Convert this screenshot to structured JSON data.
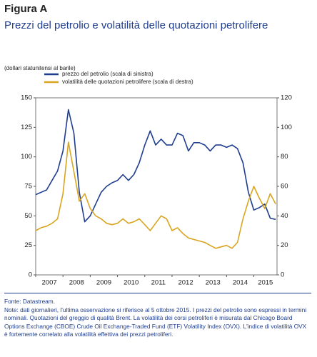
{
  "chart_data": {
    "type": "line",
    "title": "Figura A",
    "subtitle": "Prezzi del petrolio e volatilità delle quotazioni petrolifere",
    "y_label": "(dollari statunitensi al barile)",
    "categories": [
      "2007",
      "2008",
      "2009",
      "2010",
      "2011",
      "2012",
      "2013",
      "2014",
      "2015"
    ],
    "x": [
      2007.0,
      2007.2,
      2007.4,
      2007.6,
      2007.8,
      2008.0,
      2008.2,
      2008.4,
      2008.6,
      2008.8,
      2009.0,
      2009.2,
      2009.4,
      2009.6,
      2009.8,
      2010.0,
      2010.2,
      2010.4,
      2010.6,
      2010.8,
      2011.0,
      2011.2,
      2011.4,
      2011.6,
      2011.8,
      2012.0,
      2012.2,
      2012.4,
      2012.6,
      2012.8,
      2013.0,
      2013.2,
      2013.4,
      2013.6,
      2013.8,
      2014.0,
      2014.2,
      2014.4,
      2014.6,
      2014.8,
      2015.0,
      2015.2,
      2015.4,
      2015.6,
      2015.8
    ],
    "xlim": [
      2007,
      2015.85
    ],
    "series": [
      {
        "name": "prezzo del petrolio (scala di sinistra)",
        "color": "#1f3d8f",
        "axis": "y",
        "values": [
          68,
          70,
          72,
          80,
          88,
          105,
          140,
          120,
          70,
          45,
          50,
          60,
          70,
          75,
          78,
          80,
          85,
          80,
          85,
          95,
          110,
          122,
          110,
          115,
          110,
          110,
          120,
          118,
          105,
          112,
          112,
          110,
          105,
          110,
          110,
          108,
          110,
          107,
          95,
          70,
          55,
          57,
          60,
          48,
          47
        ]
      },
      {
        "name": "volatilità delle quotazioni petrolifere (scala di destra)",
        "color": "#d9a520",
        "axis": "y2",
        "values": [
          30,
          32,
          33,
          35,
          38,
          55,
          90,
          70,
          50,
          55,
          45,
          40,
          38,
          35,
          34,
          35,
          38,
          35,
          36,
          38,
          34,
          30,
          35,
          40,
          38,
          30,
          32,
          28,
          25,
          24,
          23,
          22,
          20,
          18,
          19,
          20,
          18,
          22,
          38,
          50,
          60,
          52,
          45,
          55,
          48
        ]
      }
    ],
    "ylim": [
      0,
      150
    ],
    "yticks": [
      0,
      25,
      50,
      75,
      100,
      125,
      150
    ],
    "y2lim": [
      0,
      120
    ],
    "y2ticks": [
      0,
      20,
      40,
      60,
      80,
      100,
      120
    ],
    "grid": false,
    "source": "Fonte: Datastream.",
    "note": "Note: dati giornalieri, l'ultima osservazione si riferisce al 5 ottobre 2015. I prezzi del petrolio sono espressi in termini nominali. Quotazioni del greggio di qualità Brent. La volatilità dei corsi petroliferi è misurata dal Chicago Board Options Exchange (CBOE) Crude Oil Exchange-Traded Fund (ETF) Volatility Index (OVX). L'indice di volatilità OVX è fortemente correlato alla volatilità effettiva dei prezzi petroliferi."
  }
}
